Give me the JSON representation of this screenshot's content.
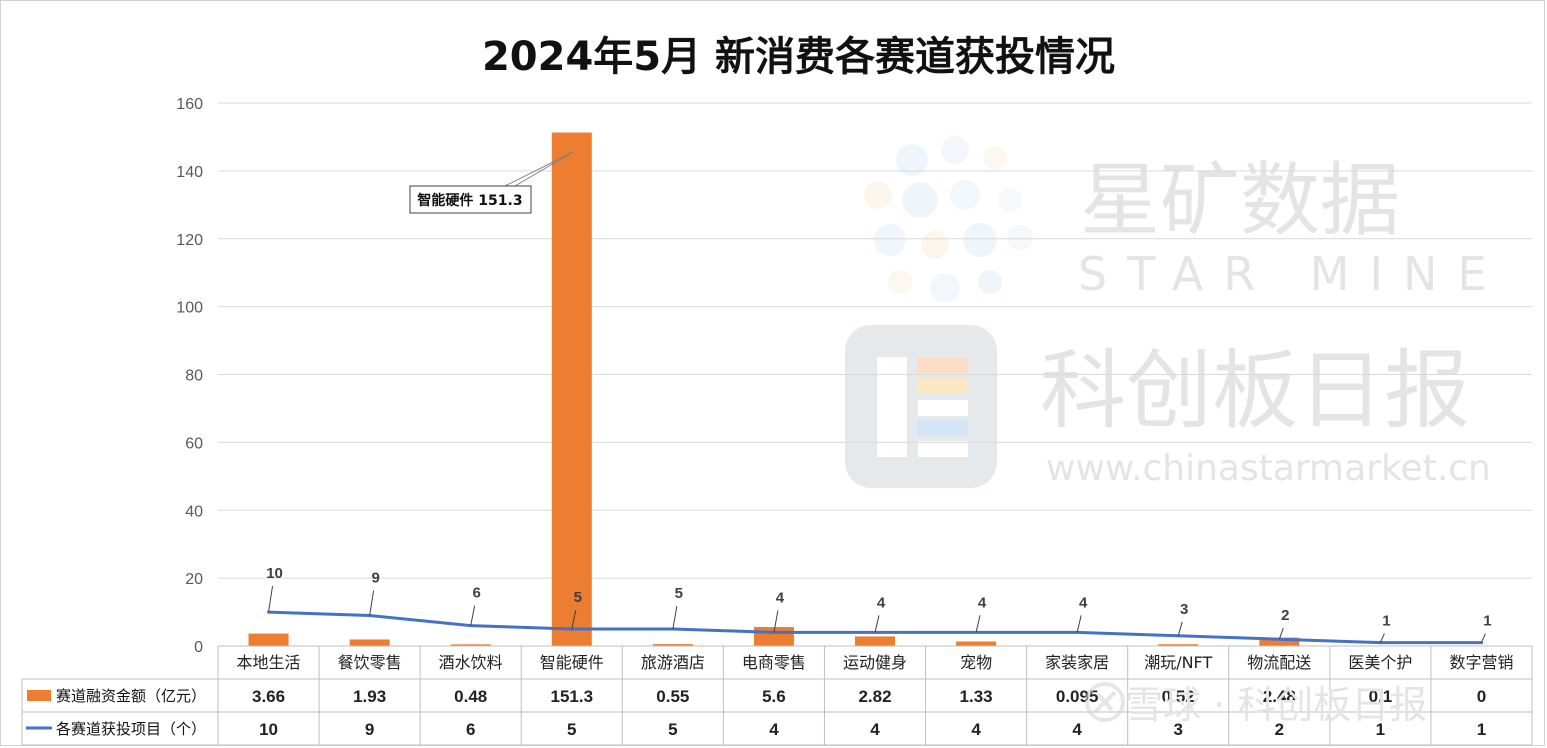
{
  "chart_data": {
    "type": "bar",
    "title": "2024年5月 新消费各赛道获投情况",
    "categories": [
      "本地生活",
      "餐饮零售",
      "酒水饮料",
      "智能硬件",
      "旅游酒店",
      "电商零售",
      "运动健身",
      "宠物",
      "家装家居",
      "潮玩/NFT",
      "物流配送",
      "医美个护",
      "数字营销"
    ],
    "ylim": [
      0,
      160
    ],
    "yticks": [
      0,
      20,
      40,
      60,
      80,
      100,
      120,
      140,
      160
    ],
    "grid": true,
    "legend": "data-table-below",
    "series": [
      {
        "name": "赛道融资金额（亿元）",
        "type": "bar",
        "color": "#ED7D31",
        "values": [
          3.66,
          1.93,
          0.48,
          151.3,
          0.55,
          5.6,
          2.82,
          1.33,
          0.095,
          0.52,
          2.48,
          0.1,
          0
        ],
        "table_values": [
          "3.66",
          "1.93",
          "0.48",
          "151.3",
          "0.55",
          "5.6",
          "2.82",
          "1.33",
          "0.095",
          "0.52",
          "2.48",
          "0.1",
          "0"
        ]
      },
      {
        "name": "各赛道获投项目（个）",
        "type": "line",
        "color": "#4472C4",
        "values": [
          10,
          9,
          6,
          5,
          5,
          4,
          4,
          4,
          4,
          3,
          2,
          1,
          1
        ]
      }
    ],
    "annotation": "智能硬件 151.3"
  },
  "watermarks": {
    "brand_cn": "星矿数据",
    "brand_en": "STAR MINE",
    "publisher": "科创板日报",
    "url": "www.chinastarmarket.cn",
    "footer": "雪球 · 科创板日报"
  }
}
